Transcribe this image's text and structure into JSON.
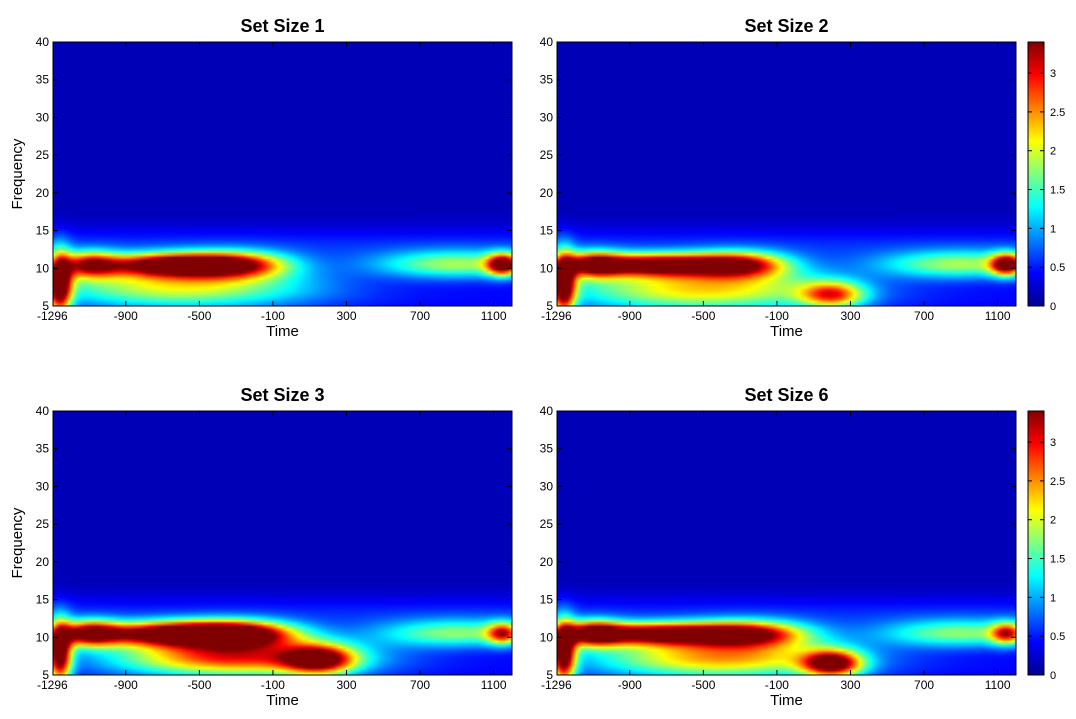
{
  "colorbar": {
    "ticks": [
      0,
      0.5,
      1,
      1.5,
      2,
      2.5,
      3
    ],
    "range": [
      0,
      3.4
    ],
    "colormap": "jet"
  },
  "chart_data": [
    {
      "type": "heatmap",
      "title": "Set Size 1",
      "xlabel": "Time",
      "ylabel": "Frequency",
      "xlim": [
        -1296,
        1200
      ],
      "ylim": [
        5,
        40
      ],
      "xticks": [
        -1296,
        -900,
        -500,
        -100,
        300,
        700,
        1100
      ],
      "yticks": [
        5,
        10,
        15,
        20,
        25,
        30,
        35,
        40
      ],
      "colorbar": false,
      "features": [
        {
          "time": -650,
          "freq": 10.5,
          "peak": 3.2,
          "sigma_time": 240,
          "sigma_freq": 1.0
        },
        {
          "time": -300,
          "freq": 10.5,
          "peak": 2.1,
          "sigma_time": 200,
          "sigma_freq": 1.2
        },
        {
          "time": -600,
          "freq": 8,
          "peak": 1.8,
          "sigma_time": 500,
          "sigma_freq": 2.2
        },
        {
          "time": 900,
          "freq": 10.5,
          "peak": 1.5,
          "sigma_time": 320,
          "sigma_freq": 1.3
        },
        {
          "time": 1150,
          "freq": 10.5,
          "peak": 2.8,
          "sigma_time": 60,
          "sigma_freq": 1.0
        },
        {
          "time": -1260,
          "freq": 8,
          "peak": 3.3,
          "sigma_time": 45,
          "sigma_freq": 2.8
        },
        {
          "time": -1100,
          "freq": 10.5,
          "peak": 2.3,
          "sigma_time": 110,
          "sigma_freq": 1.2
        }
      ]
    },
    {
      "type": "heatmap",
      "title": "Set Size 2",
      "xlabel": "Time",
      "ylabel": "",
      "xlim": [
        -1296,
        1200
      ],
      "ylim": [
        5,
        40
      ],
      "xticks": [
        -1296,
        -900,
        -500,
        -100,
        300,
        700,
        1100
      ],
      "yticks": [
        5,
        10,
        15,
        20,
        25,
        30,
        35,
        40
      ],
      "colorbar": true,
      "features": [
        {
          "time": -750,
          "freq": 10.5,
          "peak": 3.3,
          "sigma_time": 280,
          "sigma_freq": 1.0
        },
        {
          "time": -300,
          "freq": 10.5,
          "peak": 2.2,
          "sigma_time": 180,
          "sigma_freq": 1.2
        },
        {
          "time": -500,
          "freq": 7.5,
          "peak": 1.9,
          "sigma_time": 520,
          "sigma_freq": 2.2
        },
        {
          "time": 200,
          "freq": 6.5,
          "peak": 2.0,
          "sigma_time": 120,
          "sigma_freq": 1.2
        },
        {
          "time": 900,
          "freq": 10.5,
          "peak": 1.5,
          "sigma_time": 320,
          "sigma_freq": 1.3
        },
        {
          "time": 1150,
          "freq": 10.5,
          "peak": 2.8,
          "sigma_time": 60,
          "sigma_freq": 1.0
        },
        {
          "time": -1260,
          "freq": 8,
          "peak": 3.3,
          "sigma_time": 45,
          "sigma_freq": 2.8
        },
        {
          "time": -1100,
          "freq": 10.5,
          "peak": 2.3,
          "sigma_time": 110,
          "sigma_freq": 1.2
        }
      ]
    },
    {
      "type": "heatmap",
      "title": "Set Size 3",
      "xlabel": "Time",
      "ylabel": "Frequency",
      "xlim": [
        -1296,
        1200
      ],
      "ylim": [
        5,
        40
      ],
      "xticks": [
        -1296,
        -900,
        -500,
        -100,
        300,
        700,
        1100
      ],
      "yticks": [
        5,
        10,
        15,
        20,
        25,
        30,
        35,
        40
      ],
      "colorbar": false,
      "features": [
        {
          "time": -650,
          "freq": 10.5,
          "peak": 3.4,
          "sigma_time": 320,
          "sigma_freq": 1.1
        },
        {
          "time": -300,
          "freq": 10.5,
          "peak": 2.5,
          "sigma_time": 220,
          "sigma_freq": 1.2
        },
        {
          "time": -300,
          "freq": 7.5,
          "peak": 2.6,
          "sigma_time": 450,
          "sigma_freq": 1.8
        },
        {
          "time": 150,
          "freq": 7,
          "peak": 2.6,
          "sigma_time": 130,
          "sigma_freq": 1.3
        },
        {
          "time": 900,
          "freq": 10.5,
          "peak": 1.4,
          "sigma_time": 320,
          "sigma_freq": 1.3
        },
        {
          "time": 1150,
          "freq": 10.5,
          "peak": 2.0,
          "sigma_time": 60,
          "sigma_freq": 1.0
        },
        {
          "time": -1260,
          "freq": 8,
          "peak": 3.3,
          "sigma_time": 45,
          "sigma_freq": 2.8
        },
        {
          "time": -1100,
          "freq": 10.5,
          "peak": 2.5,
          "sigma_time": 110,
          "sigma_freq": 1.2
        }
      ]
    },
    {
      "type": "heatmap",
      "title": "Set Size 6",
      "xlabel": "Time",
      "ylabel": "",
      "xlim": [
        -1296,
        1200
      ],
      "ylim": [
        5,
        40
      ],
      "xticks": [
        -1296,
        -900,
        -500,
        -100,
        300,
        700,
        1100
      ],
      "yticks": [
        5,
        10,
        15,
        20,
        25,
        30,
        35,
        40
      ],
      "colorbar": true,
      "features": [
        {
          "time": -750,
          "freq": 10.5,
          "peak": 3.3,
          "sigma_time": 300,
          "sigma_freq": 1.0
        },
        {
          "time": -250,
          "freq": 10.5,
          "peak": 2.4,
          "sigma_time": 220,
          "sigma_freq": 1.2
        },
        {
          "time": -400,
          "freq": 7.5,
          "peak": 2.1,
          "sigma_time": 480,
          "sigma_freq": 2.0
        },
        {
          "time": 200,
          "freq": 6.5,
          "peak": 3.0,
          "sigma_time": 110,
          "sigma_freq": 1.2
        },
        {
          "time": 900,
          "freq": 10.5,
          "peak": 1.4,
          "sigma_time": 320,
          "sigma_freq": 1.3
        },
        {
          "time": 1150,
          "freq": 10.5,
          "peak": 2.0,
          "sigma_time": 60,
          "sigma_freq": 1.0
        },
        {
          "time": -1260,
          "freq": 8,
          "peak": 3.3,
          "sigma_time": 45,
          "sigma_freq": 2.8
        },
        {
          "time": -1100,
          "freq": 10.5,
          "peak": 2.5,
          "sigma_time": 110,
          "sigma_freq": 1.2
        }
      ]
    }
  ]
}
